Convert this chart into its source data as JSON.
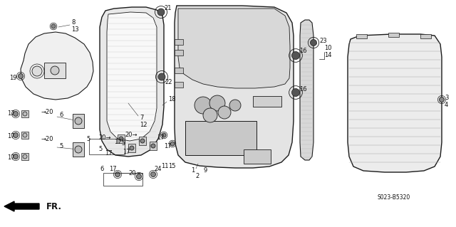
{
  "bg_color": "#ffffff",
  "line_color": "#1a1a1a",
  "fig_width": 6.4,
  "fig_height": 3.19,
  "dpi": 100,
  "label_fontsize": 6.0,
  "label_color": "#111111"
}
